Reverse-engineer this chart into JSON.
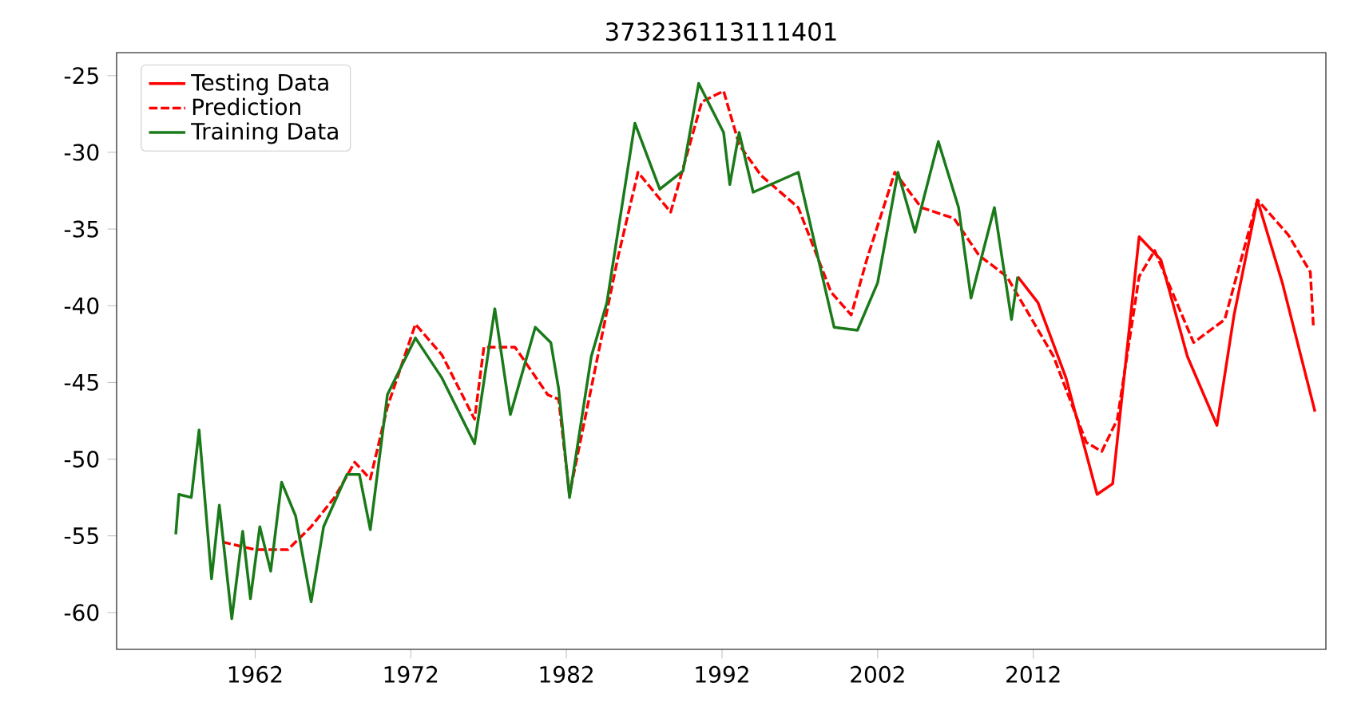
{
  "chart_data": {
    "type": "line",
    "title": "373236113111401",
    "xlim": [
      1953.1,
      2030.8
    ],
    "ylim": [
      -62.4,
      -23.5
    ],
    "xticks": [
      1962,
      1972,
      1982,
      1992,
      2002,
      2012
    ],
    "yticks": [
      -60,
      -55,
      -50,
      -45,
      -40,
      -35,
      -30,
      -25
    ],
    "legend": "top left",
    "grid": false,
    "series": [
      {
        "name": "Testing Data",
        "color": "#ff0000",
        "line_style": "solid",
        "x": [
          2011.0,
          2012.3,
          2014.1,
          2016.1,
          2017.1,
          2018.8,
          2020.2,
          2021.9,
          2023.8,
          2024.9,
          2026.4,
          2028.0,
          2030.1
        ],
        "values": [
          -38.1,
          -39.8,
          -44.7,
          -52.3,
          -51.6,
          -35.5,
          -37.0,
          -43.3,
          -47.8,
          -40.6,
          -33.1,
          -38.5,
          -46.9
        ]
      },
      {
        "name": "Prediction",
        "color": "#ff0000",
        "line_style": "dashed",
        "x": [
          1959.9,
          1962.0,
          1964.1,
          1965.6,
          1967.1,
          1968.4,
          1969.4,
          1970.5,
          1972.3,
          1974.0,
          1976.1,
          1976.7,
          1978.7,
          1980.8,
          1981.5,
          1982.2,
          1985.3,
          1986.6,
          1988.7,
          1990.7,
          1992.1,
          1993.1,
          1994.5,
          1996.9,
          1999.0,
          2000.3,
          2001.3,
          2003.1,
          2004.8,
          2006.9,
          2008.5,
          2010.3,
          2013.3,
          2015.4,
          2016.4,
          2017.4,
          2018.8,
          2019.8,
          2022.3,
          2024.3,
          2026.4,
          2028.4,
          2029.8,
          2030.0
        ],
        "values": [
          -55.4,
          -55.9,
          -55.9,
          -54.4,
          -52.5,
          -50.2,
          -51.3,
          -46.6,
          -41.2,
          -43.2,
          -47.4,
          -42.7,
          -42.7,
          -45.8,
          -46.1,
          -52.3,
          -36.9,
          -31.3,
          -33.9,
          -26.7,
          -26.0,
          -29.5,
          -31.5,
          -33.6,
          -39.1,
          -40.6,
          -37.0,
          -31.3,
          -33.6,
          -34.3,
          -36.7,
          -38.1,
          -43.3,
          -48.9,
          -49.5,
          -47.4,
          -38.1,
          -36.4,
          -42.4,
          -40.9,
          -33.1,
          -35.4,
          -37.8,
          -41.4
        ]
      },
      {
        "name": "Training Data",
        "color": "#1a7a1a",
        "line_style": "solid",
        "x": [
          1956.9,
          1957.1,
          1957.9,
          1958.4,
          1959.2,
          1959.7,
          1960.5,
          1961.2,
          1961.7,
          1962.3,
          1963.0,
          1963.7,
          1964.6,
          1965.6,
          1966.4,
          1967.9,
          1968.7,
          1969.4,
          1970.5,
          1972.3,
          1974.0,
          1976.1,
          1977.4,
          1978.4,
          1980.0,
          1981.0,
          1981.5,
          1982.2,
          1983.6,
          1984.6,
          1986.4,
          1988.0,
          1989.5,
          1990.5,
          1992.1,
          1992.5,
          1993.1,
          1994.0,
          1996.9,
          1999.2,
          2000.7,
          2002.0,
          2003.3,
          2004.4,
          2005.9,
          2007.2,
          2008.0,
          2009.5,
          2010.6,
          2011.0
        ],
        "values": [
          -54.9,
          -52.3,
          -52.5,
          -48.1,
          -57.8,
          -53.0,
          -60.4,
          -54.7,
          -59.1,
          -54.4,
          -57.3,
          -51.5,
          -53.7,
          -59.3,
          -54.4,
          -51.0,
          -51.0,
          -54.6,
          -45.8,
          -42.1,
          -44.7,
          -49.0,
          -40.2,
          -47.1,
          -41.4,
          -42.4,
          -45.4,
          -52.5,
          -43.3,
          -39.8,
          -28.1,
          -32.4,
          -31.2,
          -25.5,
          -28.7,
          -32.1,
          -28.7,
          -32.6,
          -31.3,
          -41.4,
          -41.6,
          -38.5,
          -31.3,
          -35.2,
          -29.3,
          -33.6,
          -39.5,
          -33.6,
          -40.9,
          -38.1
        ]
      }
    ]
  }
}
